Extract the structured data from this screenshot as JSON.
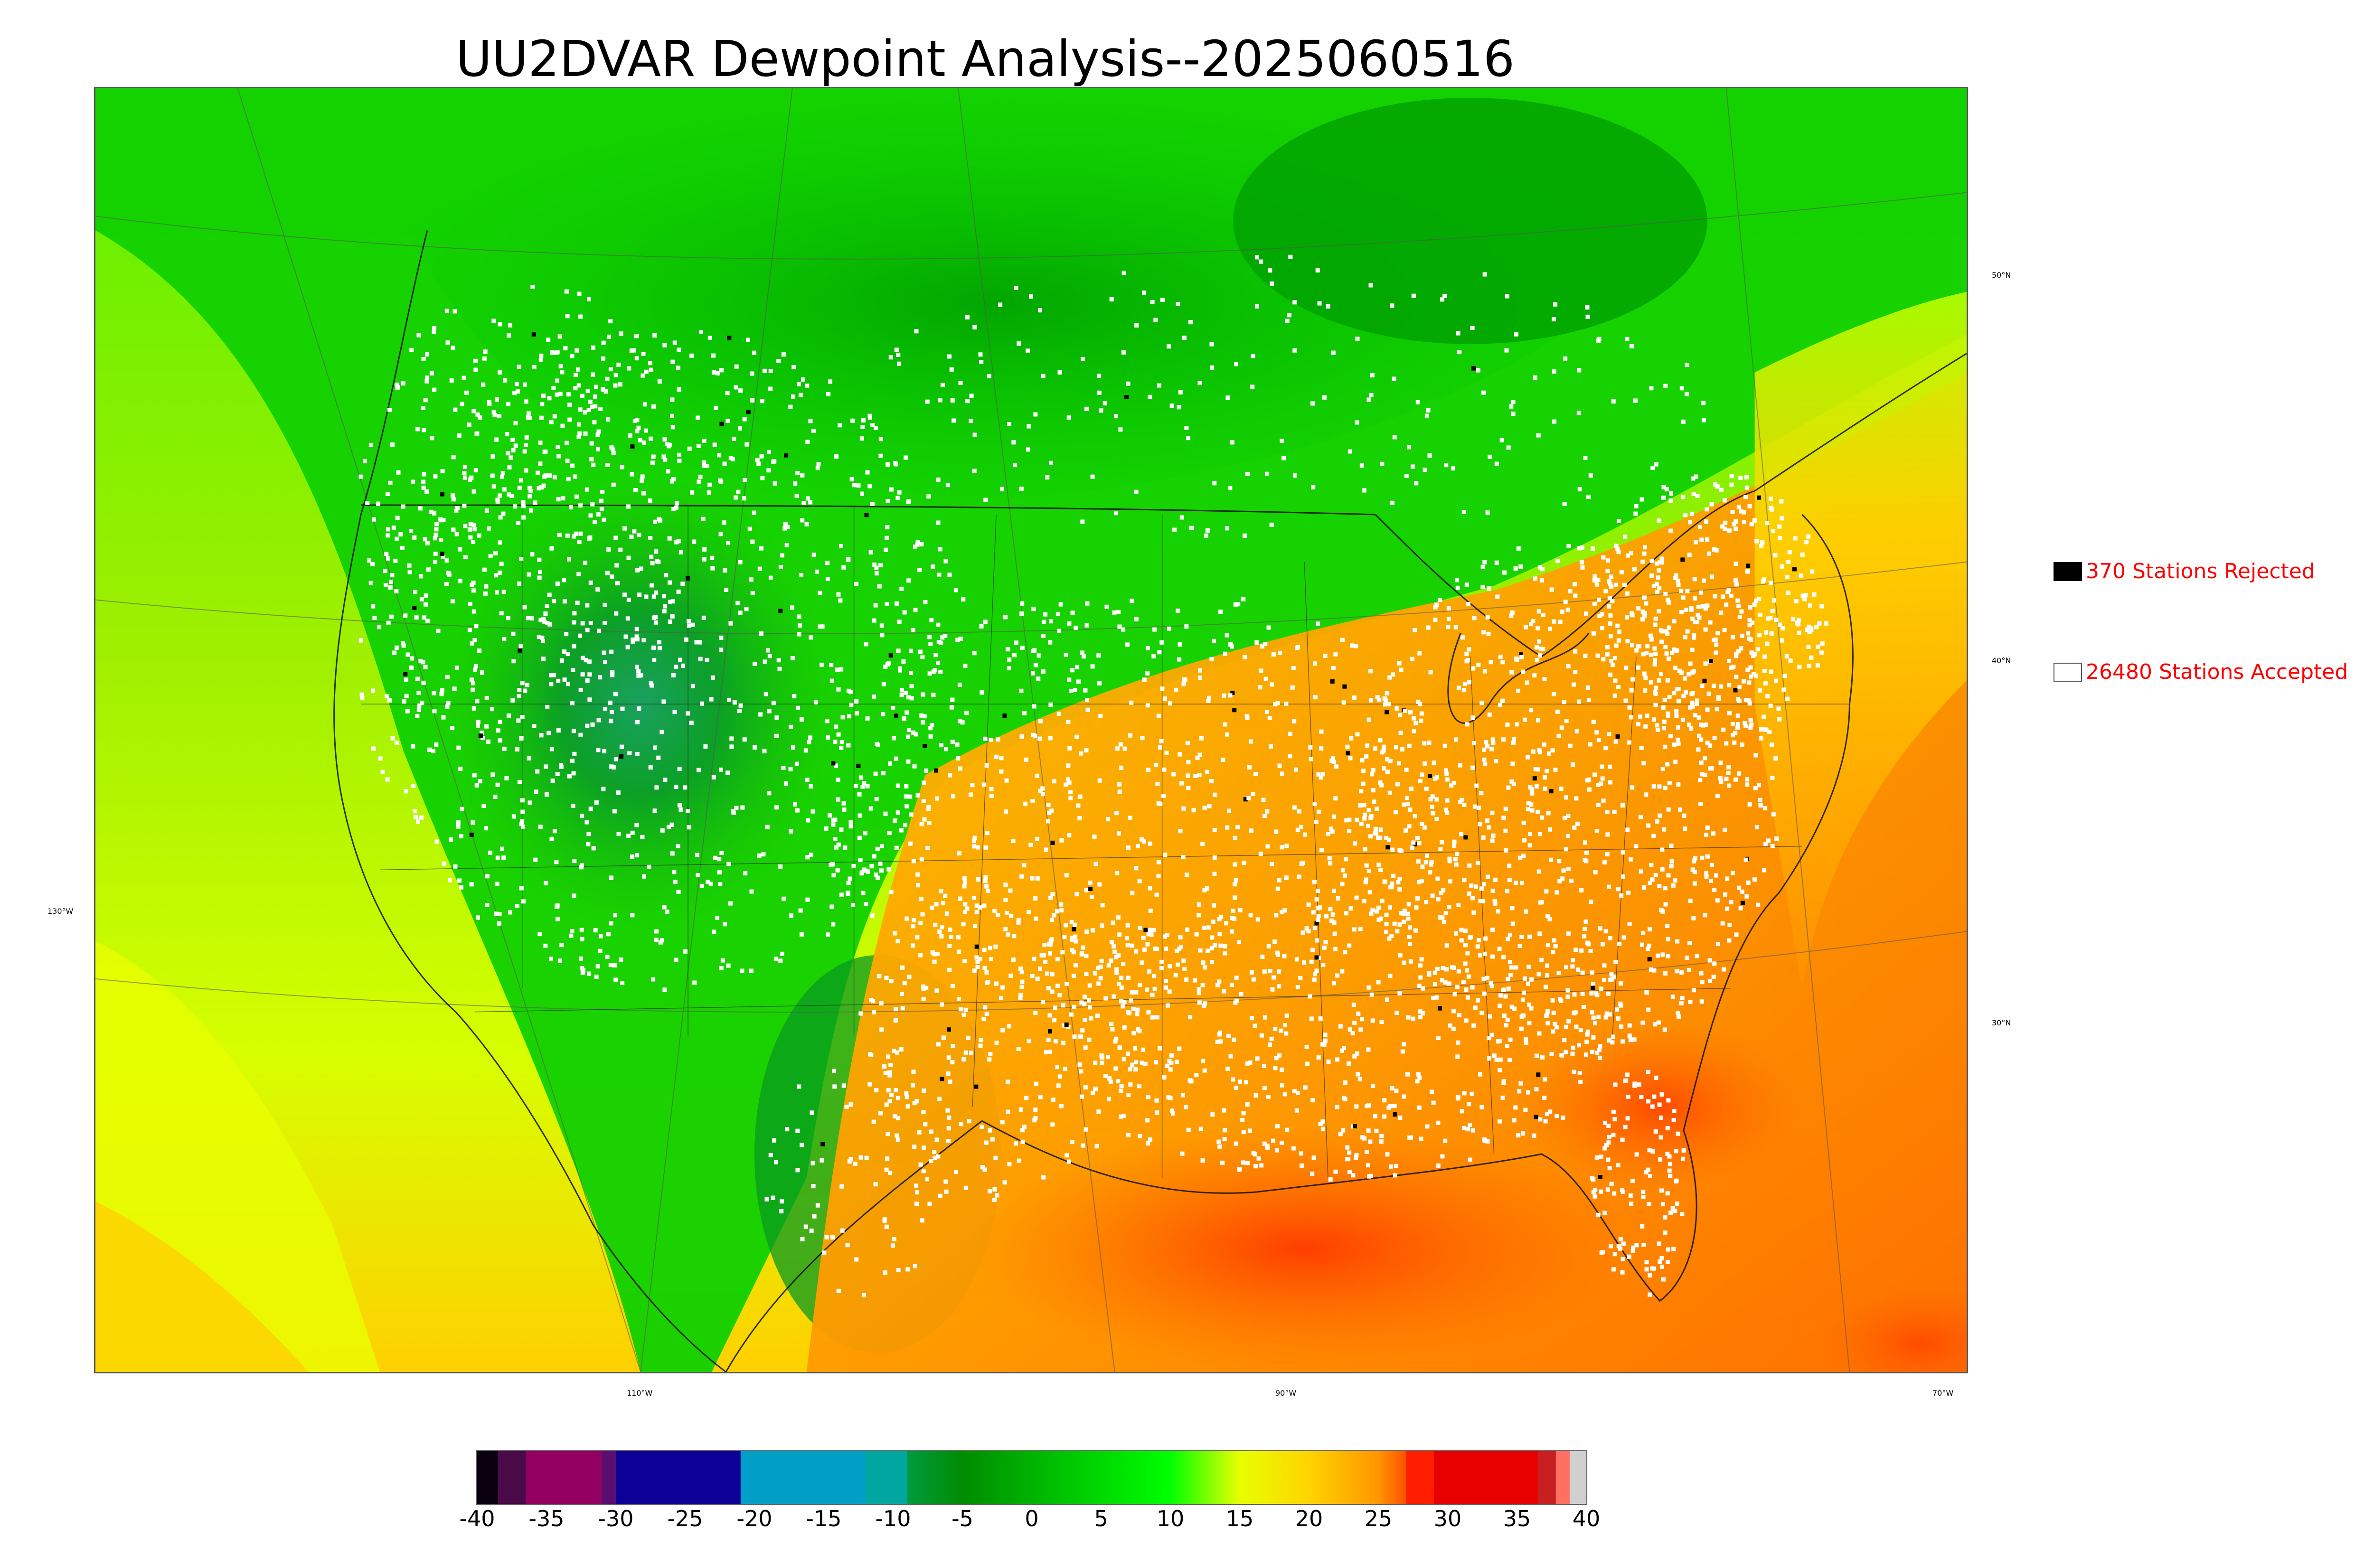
{
  "title": "UU2DVAR Dewpoint Analysis--2025060516",
  "legend": {
    "rejected": {
      "label": "370 Stations Rejected",
      "swatch_color": "#000000",
      "text_color": "#ff0000"
    },
    "accepted": {
      "label": "26480 Stations Accepted",
      "swatch_color": "#ffffff",
      "text_color": "#ff0000"
    }
  },
  "map": {
    "projection": "lambert-conformal",
    "lat_labels": [
      "50°N",
      "40°N",
      "30°N"
    ],
    "lon_labels": [
      "130°W",
      "110°W",
      "90°W",
      "70°W"
    ],
    "station_color_accepted": "#ffffff",
    "station_color_rejected": "#000000"
  },
  "colorbar": {
    "min": -40,
    "max": 40,
    "ticks": [
      "-40",
      "-35",
      "-30",
      "-25",
      "-20",
      "-15",
      "-10",
      "-5",
      "0",
      "5",
      "10",
      "15",
      "20",
      "25",
      "30",
      "35",
      "40"
    ],
    "stops": [
      {
        "from": -40,
        "to": -38.5,
        "color": "#0a0010"
      },
      {
        "from": -38.5,
        "to": -36.5,
        "color": "#4a0a4a"
      },
      {
        "from": -36.5,
        "to": -31,
        "color": "#930062"
      },
      {
        "from": -31,
        "to": -30,
        "color": "#5a0f70"
      },
      {
        "from": -30,
        "to": -21,
        "color": "#0c0096"
      },
      {
        "from": -21,
        "to": -12,
        "color": "#009fc8"
      },
      {
        "from": -12,
        "to": -9,
        "color": "#00a6a0"
      },
      {
        "from": -9,
        "to": -5,
        "color": "#009a40",
        "gradient_to": "#008c00"
      },
      {
        "from": -5,
        "to": 10,
        "color": "#008c00",
        "gradient_to": "#00ff00"
      },
      {
        "from": 10,
        "to": 15,
        "color": "#00ff00",
        "gradient_to": "#e8ff00"
      },
      {
        "from": 15,
        "to": 20,
        "color": "#e8ff00",
        "gradient_to": "#ffd400"
      },
      {
        "from": 20,
        "to": 25,
        "color": "#ffd400",
        "gradient_to": "#ff9600"
      },
      {
        "from": 25,
        "to": 27,
        "color": "#ff9600",
        "gradient_to": "#ff5000"
      },
      {
        "from": 27,
        "to": 29,
        "color": "#ff1e00"
      },
      {
        "from": 29,
        "to": 36.5,
        "color": "#e80000"
      },
      {
        "from": 36.5,
        "to": 37.8,
        "color": "#c82020"
      },
      {
        "from": 37.8,
        "to": 38.8,
        "color": "#ff7060"
      },
      {
        "from": 38.8,
        "to": 40,
        "color": "#d0d0d0"
      }
    ]
  }
}
